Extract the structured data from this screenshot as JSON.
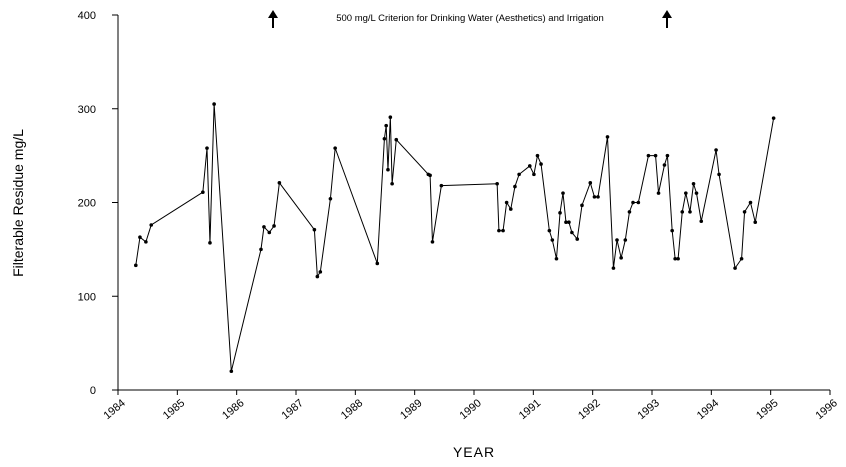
{
  "chart_data": {
    "type": "line",
    "annotation": "500 mg/L Criterion for Drinking Water (Aesthetics) and Irrigation",
    "x_label": "YEAR",
    "y_label": "Filterable Residue mg/L",
    "xlim": [
      1984,
      1996
    ],
    "xticks": [
      1984,
      1985,
      1986,
      1987,
      1988,
      1989,
      1990,
      1991,
      1992,
      1993,
      1994,
      1995,
      1996
    ],
    "ylim": [
      0,
      400
    ],
    "yticks": [
      0,
      100,
      200,
      300,
      400
    ],
    "x": [
      1984.3,
      1984.37,
      1984.47,
      1984.56,
      1985.43,
      1985.5,
      1985.55,
      1985.62,
      1985.91,
      1986.41,
      1986.46,
      1986.55,
      1986.63,
      1986.72,
      1987.31,
      1987.36,
      1987.41,
      1987.58,
      1987.66,
      1988.37,
      1988.49,
      1988.52,
      1988.55,
      1988.59,
      1988.62,
      1988.69,
      1989.23,
      1989.26,
      1989.3,
      1989.45,
      1990.39,
      1990.42,
      1990.49,
      1990.55,
      1990.62,
      1990.69,
      1990.76,
      1990.94,
      1991.01,
      1991.07,
      1991.13,
      1991.27,
      1991.32,
      1991.39,
      1991.45,
      1991.5,
      1991.55,
      1991.6,
      1991.65,
      1991.74,
      1991.82,
      1991.96,
      1992.03,
      1992.09,
      1992.25,
      1992.35,
      1992.41,
      1992.48,
      1992.55,
      1992.62,
      1992.68,
      1992.77,
      1992.94,
      1993.06,
      1993.11,
      1993.21,
      1993.26,
      1993.34,
      1993.39,
      1993.44,
      1993.51,
      1993.57,
      1993.64,
      1993.7,
      1993.75,
      1993.83,
      1994.08,
      1994.13,
      1994.4,
      1994.51,
      1994.56,
      1994.66,
      1994.74,
      1995.05
    ],
    "series": [
      {
        "color": "#000000",
        "values": [
          133,
          163,
          158,
          176,
          211,
          258,
          157,
          305,
          20,
          150,
          174,
          168,
          175,
          221,
          171,
          121,
          126,
          204,
          258,
          135,
          268,
          282,
          235,
          291,
          220,
          267,
          230,
          229,
          158,
          218,
          220,
          170,
          170,
          200,
          193,
          217,
          230,
          239,
          230,
          250,
          241,
          170,
          160,
          140,
          189,
          210,
          179,
          179,
          168,
          161,
          197,
          221,
          206,
          206,
          270,
          130,
          160,
          141,
          160,
          190,
          200,
          200,
          250,
          250,
          210,
          240,
          250,
          170,
          140,
          140,
          190,
          210,
          190,
          220,
          210,
          180,
          256,
          230,
          130,
          140,
          190,
          200,
          179,
          290
        ]
      }
    ]
  }
}
